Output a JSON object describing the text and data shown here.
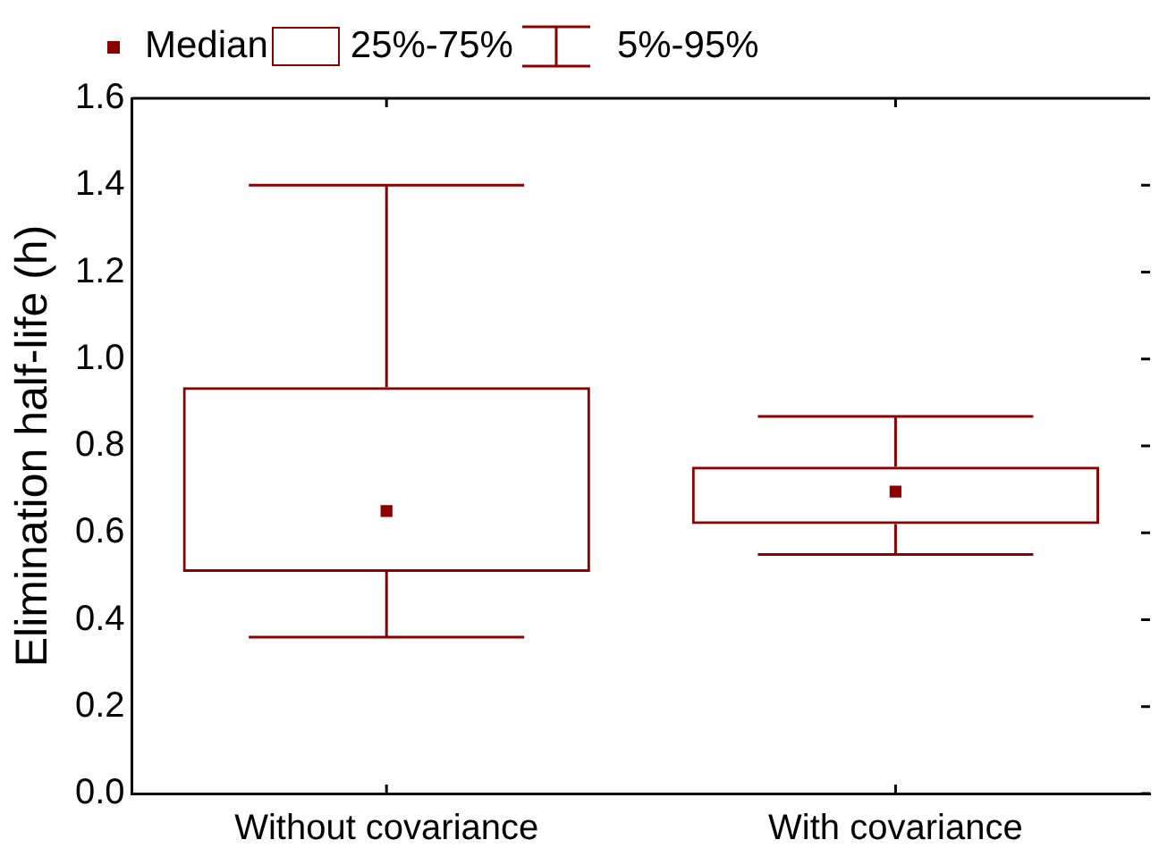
{
  "chart_data": {
    "type": "box",
    "ylabel": "Elimination half-life (h)",
    "categories": [
      "Without covariance",
      "With covariance"
    ],
    "color": "#8b0000",
    "boxes": [
      {
        "low": 0.36,
        "q1": 0.51,
        "median": 0.65,
        "q3": 0.935,
        "high": 1.4
      },
      {
        "low": 0.55,
        "q1": 0.62,
        "median": 0.695,
        "q3": 0.752,
        "high": 0.868
      }
    ],
    "ylim": [
      0,
      1.6
    ],
    "yticks": [
      {
        "value": 0,
        "label": "0.0"
      },
      0.2,
      0.4,
      0.6,
      0.8,
      {
        "value": 1,
        "label": "1.0"
      },
      1.2,
      1.4,
      1.6
    ],
    "annotations": [
      "Median",
      "25%-75%",
      "5%-95%"
    ]
  }
}
